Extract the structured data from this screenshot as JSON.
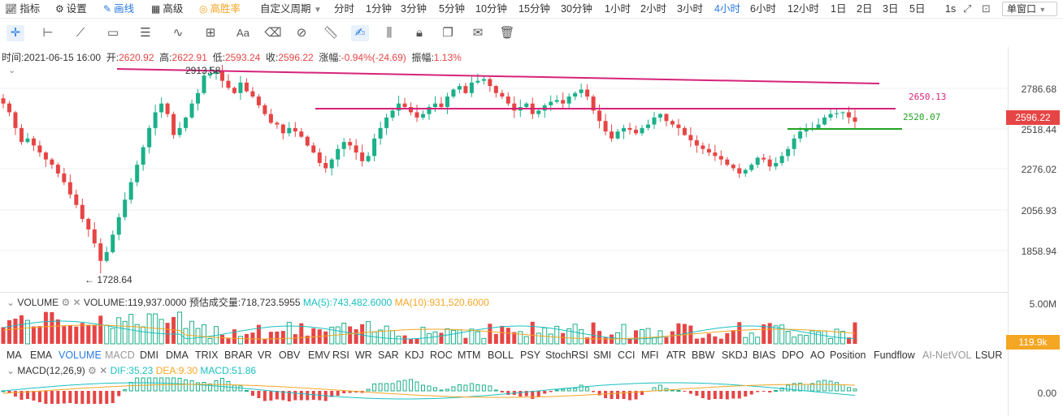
{
  "toolbar": {
    "indicators": "指标",
    "settings": "设置",
    "draw": "画线",
    "advanced": "高级",
    "win_rate": "高胜率",
    "custom_period": "自定义周期",
    "periods": [
      "分时",
      "1分钟",
      "3分钟",
      "5分钟",
      "10分钟",
      "15分钟",
      "30分钟",
      "1小时",
      "2小时",
      "3小时",
      "4小时",
      "6小时",
      "12小时",
      "1日",
      "2日",
      "3日",
      "5日"
    ],
    "active_period": "4小时",
    "refresh": "1s",
    "window_mode": "单窗口"
  },
  "ohlc": {
    "time_label": "时间:",
    "time": "2021-06-15 16:00",
    "open_label": "开:",
    "open": "2620.92",
    "high_label": "高:",
    "high": "2622.91",
    "low_label": "低:",
    "low": "2593.24",
    "close_label": "收:",
    "close": "2596.22",
    "change_label": "涨幅:",
    "change": "-0.94%(-24.69)",
    "amplitude_label": "振幅:",
    "amplitude": "1.13%"
  },
  "price_axis": [
    "2786.68",
    "2518.44",
    "2276.02",
    "2056.93",
    "1858.94"
  ],
  "last_price": "2596.22",
  "annotations": {
    "high_marker": "2913.58",
    "low_marker": "← 1728.64",
    "line1_label": "2650.13",
    "line2_label": "2520.07"
  },
  "volume": {
    "title": "VOLUME",
    "value_label": "VOLUME:119,937.0000",
    "est_label": "预估成交量:718,723.5955",
    "ma5": "MA(5):743,482.6000",
    "ma10": "MA(10):931,520.6000",
    "axis_top": "5.00M",
    "tag": "119.9k"
  },
  "indicator_tabs": [
    "MA",
    "EMA",
    "VOLUME",
    "MACD",
    "DMI",
    "DMA",
    "TRIX",
    "BRAR",
    "VR",
    "OBV",
    "EMV",
    "RSI",
    "WR",
    "SAR",
    "KDJ",
    "ROC",
    "MTM",
    "BOLL",
    "PSY",
    "StochRSI",
    "SMI",
    "CCI",
    "MFI",
    "ATR",
    "BBW",
    "SKDJ",
    "BIAS",
    "DPO",
    "AO",
    "Position",
    "Fundflow",
    "AI-NetVOL",
    "LSUR"
  ],
  "active_indicator": "VOLUME",
  "macd": {
    "title": "MACD(12,26,9)",
    "dif": "DIF:35.23",
    "dea": "DEA:9.30",
    "macd": "MACD:51.86",
    "axis_zero": "0.00"
  },
  "colors": {
    "up": "#1bb08a",
    "down": "#e64545",
    "accent": "#2a7ae2",
    "trend_line": "#d6237a",
    "support_line": "#22a322",
    "ma5": "#19c0c0",
    "ma10": "#f5a623"
  },
  "chart_data": {
    "type": "candlestick",
    "y_axis_ticks": [
      2786.68,
      2518.44,
      2276.02,
      2056.93,
      1858.94
    ],
    "last": 2596.22,
    "high": 2913.58,
    "low": 1728.64,
    "closes": [
      2700,
      2650,
      2560,
      2480,
      2500,
      2460,
      2420,
      2380,
      2350,
      2300,
      2250,
      2180,
      2120,
      2040,
      1980,
      1900,
      1800,
      1850,
      1950,
      2050,
      2150,
      2250,
      2350,
      2450,
      2560,
      2650,
      2700,
      2640,
      2520,
      2560,
      2620,
      2700,
      2760,
      2860,
      2870,
      2890,
      2830,
      2790,
      2760,
      2820,
      2770,
      2740,
      2690,
      2640,
      2590,
      2580,
      2530,
      2560,
      2540,
      2510,
      2460,
      2420,
      2360,
      2330,
      2380,
      2440,
      2480,
      2460,
      2420,
      2370,
      2400,
      2500,
      2560,
      2620,
      2660,
      2700,
      2680,
      2650,
      2620,
      2640,
      2680,
      2700,
      2680,
      2740,
      2780,
      2800,
      2760,
      2820,
      2830,
      2840,
      2800,
      2760,
      2740,
      2700,
      2660,
      2680,
      2700,
      2640,
      2660,
      2690,
      2710,
      2720,
      2700,
      2740,
      2760,
      2780,
      2740,
      2660,
      2600,
      2540,
      2500,
      2540,
      2560,
      2550,
      2530,
      2560,
      2580,
      2620,
      2640,
      2600,
      2580,
      2560,
      2520,
      2490,
      2460,
      2440,
      2420,
      2400,
      2380,
      2350,
      2330,
      2300,
      2320,
      2350,
      2390,
      2380,
      2340,
      2360,
      2400,
      2440,
      2500,
      2540,
      2550,
      2560,
      2580,
      2620,
      2640,
      2645,
      2650,
      2621,
      2596
    ]
  }
}
